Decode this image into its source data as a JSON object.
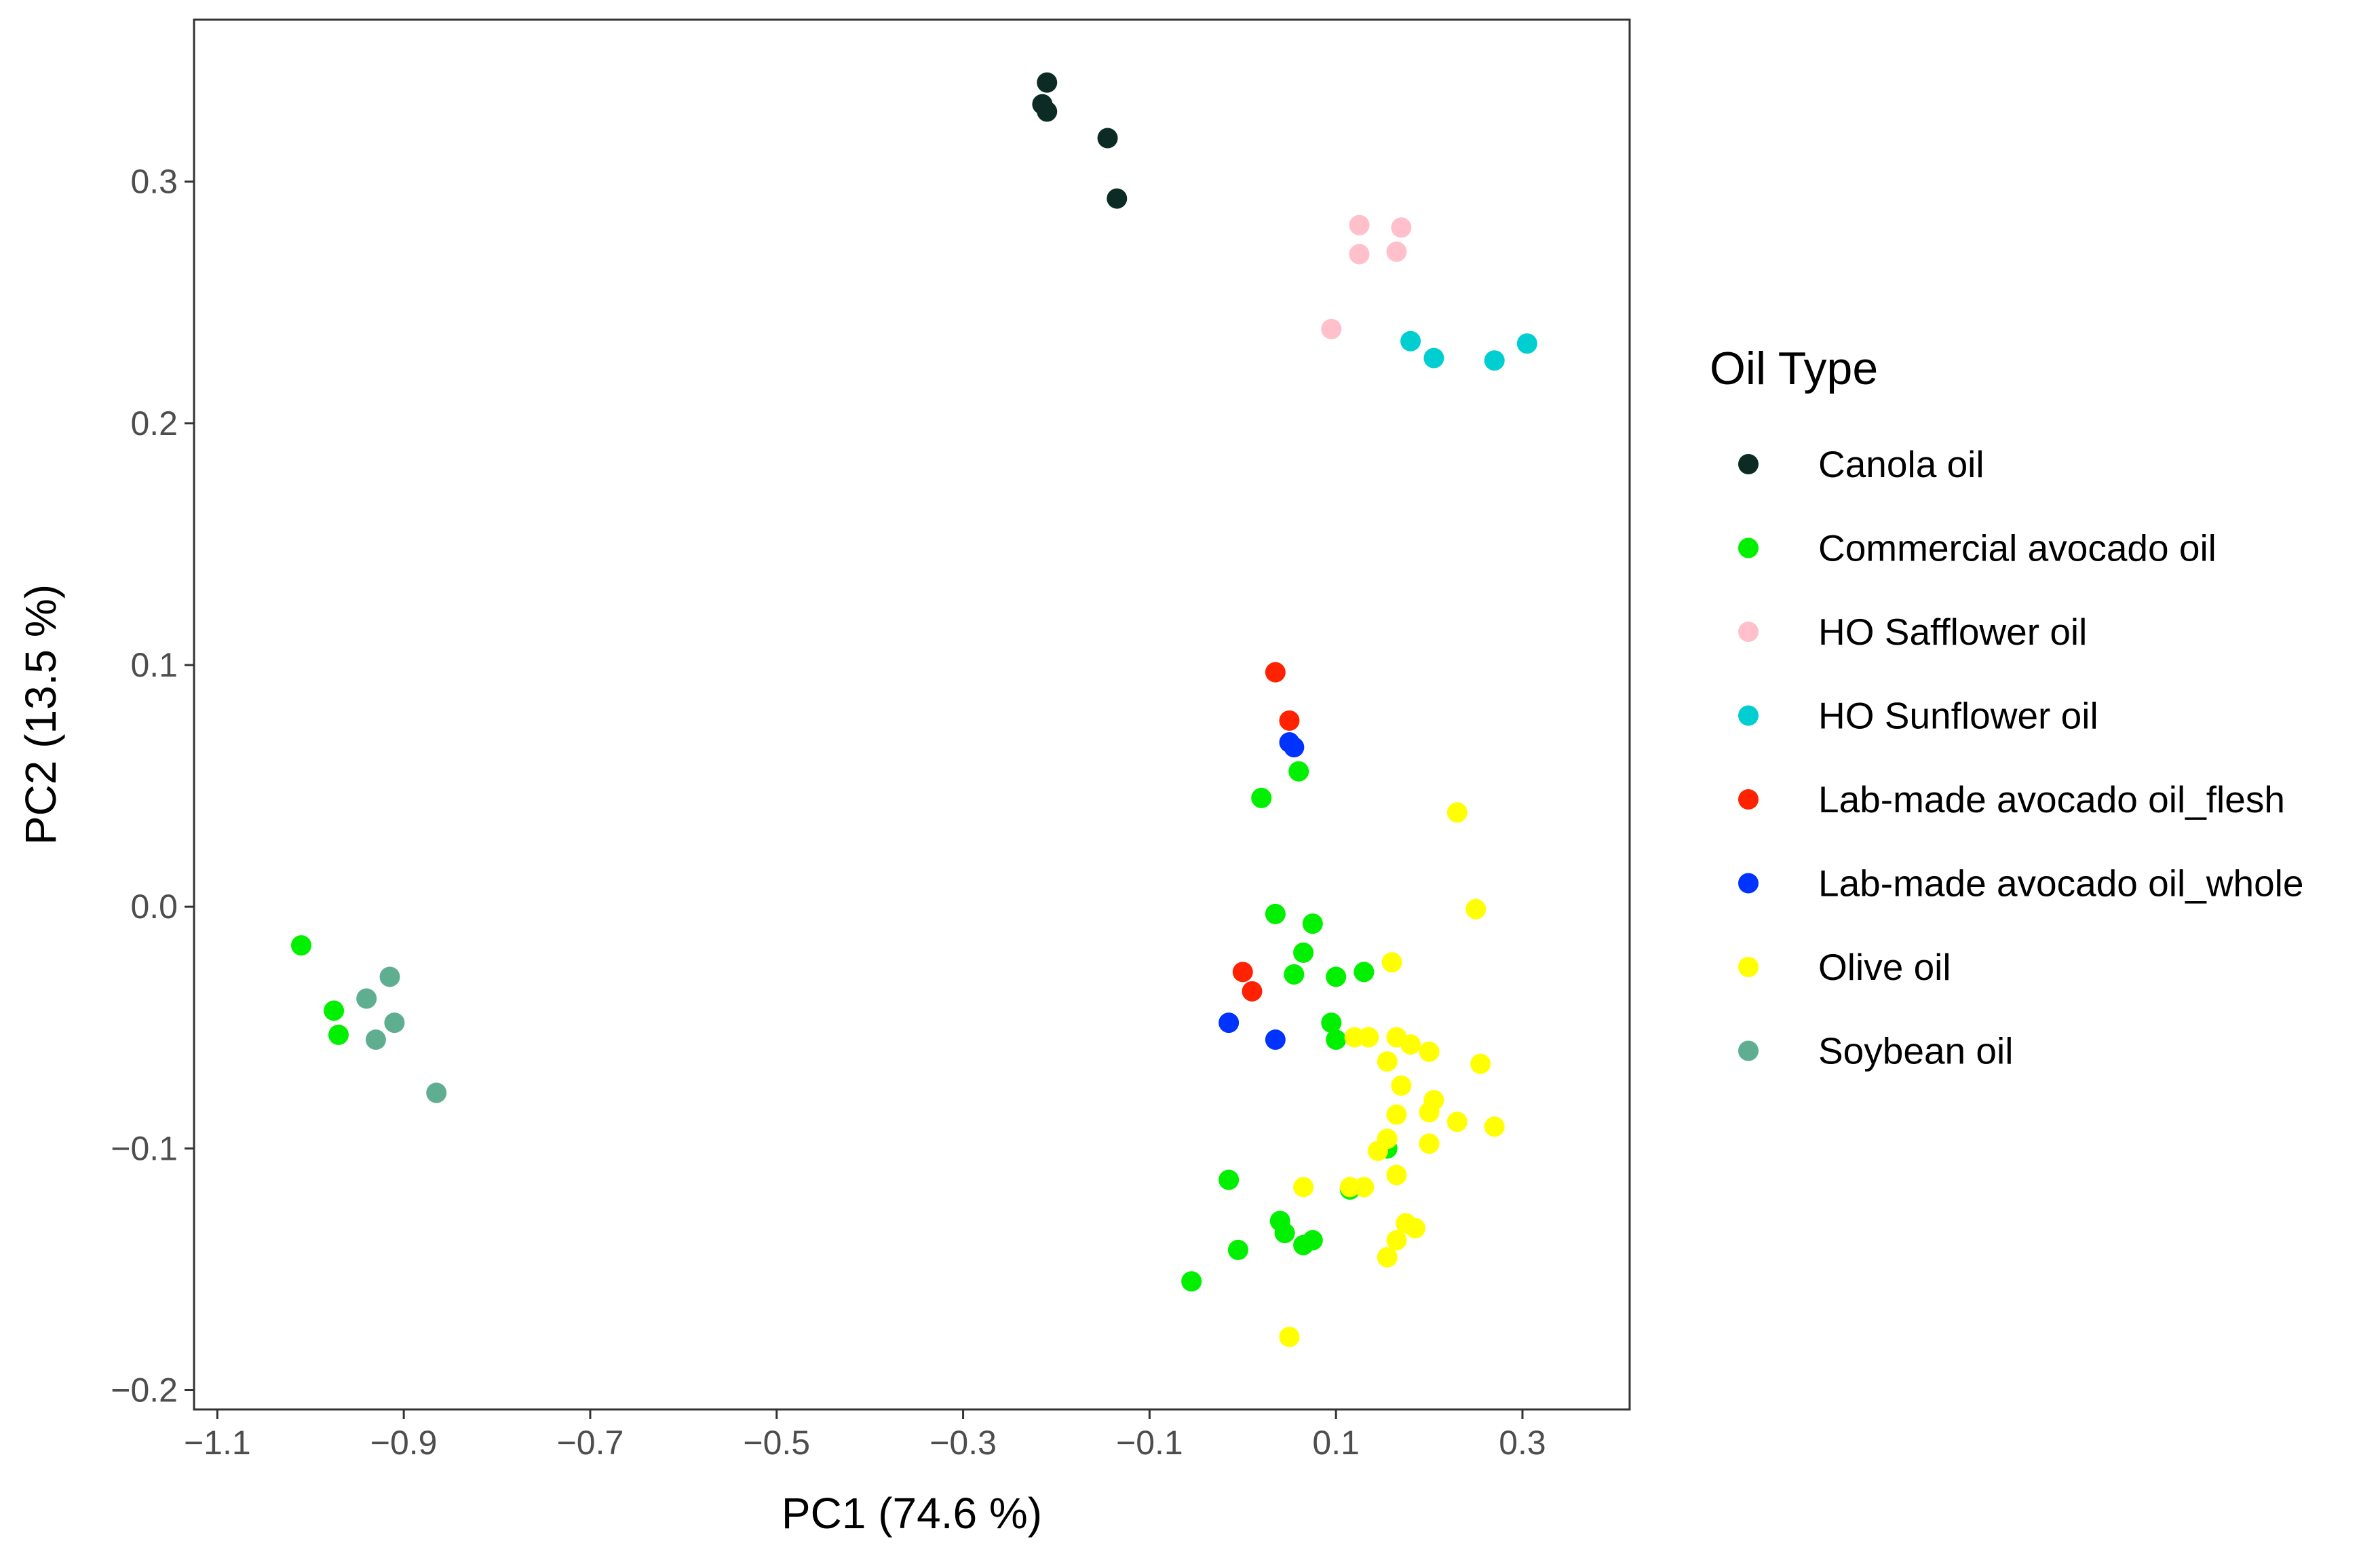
{
  "chart_data": {
    "type": "scatter",
    "title": "",
    "xlabel": "PC1 (74.6 %)",
    "ylabel": "PC2 (13.5 %)",
    "xlim": [
      -1.125,
      0.415
    ],
    "ylim": [
      -0.208,
      0.367
    ],
    "xticks": [
      -1.1,
      -0.9,
      -0.7,
      -0.5,
      -0.3,
      -0.1,
      0.1,
      0.3
    ],
    "xtick_labels": [
      "−1.1",
      "−0.9",
      "−0.7",
      "−0.5",
      "−0.3",
      "−0.1",
      "0.1",
      "0.3"
    ],
    "yticks": [
      -0.2,
      -0.1,
      0.0,
      0.1,
      0.2,
      0.3
    ],
    "ytick_labels": [
      "−0.2",
      "−0.1",
      "0.0",
      "0.1",
      "0.2",
      "0.3"
    ],
    "grid": false,
    "legend_title": "Oil Type",
    "legend_position": "right",
    "series": [
      {
        "name": "Canola oil",
        "color": "#0b2b24",
        "points": [
          [
            -0.21,
            0.341
          ],
          [
            -0.215,
            0.332
          ],
          [
            -0.21,
            0.329
          ],
          [
            -0.145,
            0.318
          ],
          [
            -0.135,
            0.293
          ]
        ]
      },
      {
        "name": "Commercial avocado oil",
        "color": "#00f000",
        "points": [
          [
            -1.01,
            -0.016
          ],
          [
            -0.975,
            -0.043
          ],
          [
            -0.97,
            -0.053
          ],
          [
            0.02,
            0.045
          ],
          [
            0.06,
            0.056
          ],
          [
            0.035,
            -0.003
          ],
          [
            0.075,
            -0.007
          ],
          [
            0.055,
            -0.028
          ],
          [
            0.065,
            -0.019
          ],
          [
            0.1,
            -0.029
          ],
          [
            0.095,
            -0.048
          ],
          [
            0.1,
            -0.055
          ],
          [
            0.13,
            -0.027
          ],
          [
            -0.015,
            -0.113
          ],
          [
            0.04,
            -0.13
          ],
          [
            0.045,
            -0.135
          ],
          [
            0.065,
            -0.14
          ],
          [
            0.075,
            -0.138
          ],
          [
            -0.005,
            -0.142
          ],
          [
            -0.055,
            -0.155
          ],
          [
            0.115,
            -0.117
          ],
          [
            0.155,
            -0.1
          ]
        ]
      },
      {
        "name": "HO Safflower oil",
        "color": "#ffc0cb",
        "points": [
          [
            0.125,
            0.282
          ],
          [
            0.17,
            0.281
          ],
          [
            0.125,
            0.27
          ],
          [
            0.165,
            0.271
          ],
          [
            0.095,
            0.239
          ]
        ]
      },
      {
        "name": "HO Sunflower oil",
        "color": "#00ced1",
        "points": [
          [
            0.18,
            0.234
          ],
          [
            0.205,
            0.227
          ],
          [
            0.27,
            0.226
          ],
          [
            0.305,
            0.233
          ]
        ]
      },
      {
        "name": "Lab-made avocado oil_flesh",
        "color": "#ff2200",
        "points": [
          [
            0.035,
            0.097
          ],
          [
            0.05,
            0.077
          ],
          [
            0.0,
            -0.027
          ],
          [
            0.01,
            -0.035
          ]
        ]
      },
      {
        "name": "Lab-made avocado oil_whole",
        "color": "#0033ff",
        "points": [
          [
            0.05,
            0.068
          ],
          [
            0.055,
            0.066
          ],
          [
            -0.015,
            -0.048
          ],
          [
            0.035,
            -0.055
          ]
        ]
      },
      {
        "name": "Olive oil",
        "color": "#ffff00",
        "points": [
          [
            0.23,
            0.039
          ],
          [
            0.25,
            -0.001
          ],
          [
            0.16,
            -0.023
          ],
          [
            0.12,
            -0.054
          ],
          [
            0.135,
            -0.054
          ],
          [
            0.165,
            -0.054
          ],
          [
            0.18,
            -0.057
          ],
          [
            0.2,
            -0.06
          ],
          [
            0.155,
            -0.064
          ],
          [
            0.255,
            -0.065
          ],
          [
            0.17,
            -0.074
          ],
          [
            0.205,
            -0.08
          ],
          [
            0.2,
            -0.085
          ],
          [
            0.165,
            -0.086
          ],
          [
            0.23,
            -0.089
          ],
          [
            0.27,
            -0.091
          ],
          [
            0.155,
            -0.096
          ],
          [
            0.145,
            -0.101
          ],
          [
            0.2,
            -0.098
          ],
          [
            0.165,
            -0.111
          ],
          [
            0.065,
            -0.116
          ],
          [
            0.115,
            -0.116
          ],
          [
            0.13,
            -0.116
          ],
          [
            0.175,
            -0.131
          ],
          [
            0.185,
            -0.133
          ],
          [
            0.165,
            -0.138
          ],
          [
            0.155,
            -0.145
          ],
          [
            0.05,
            -0.178
          ]
        ]
      },
      {
        "name": "Soybean oil",
        "color": "#5fae92",
        "points": [
          [
            -0.915,
            -0.029
          ],
          [
            -0.94,
            -0.038
          ],
          [
            -0.91,
            -0.048
          ],
          [
            -0.93,
            -0.055
          ],
          [
            -0.865,
            -0.077
          ]
        ]
      }
    ]
  }
}
